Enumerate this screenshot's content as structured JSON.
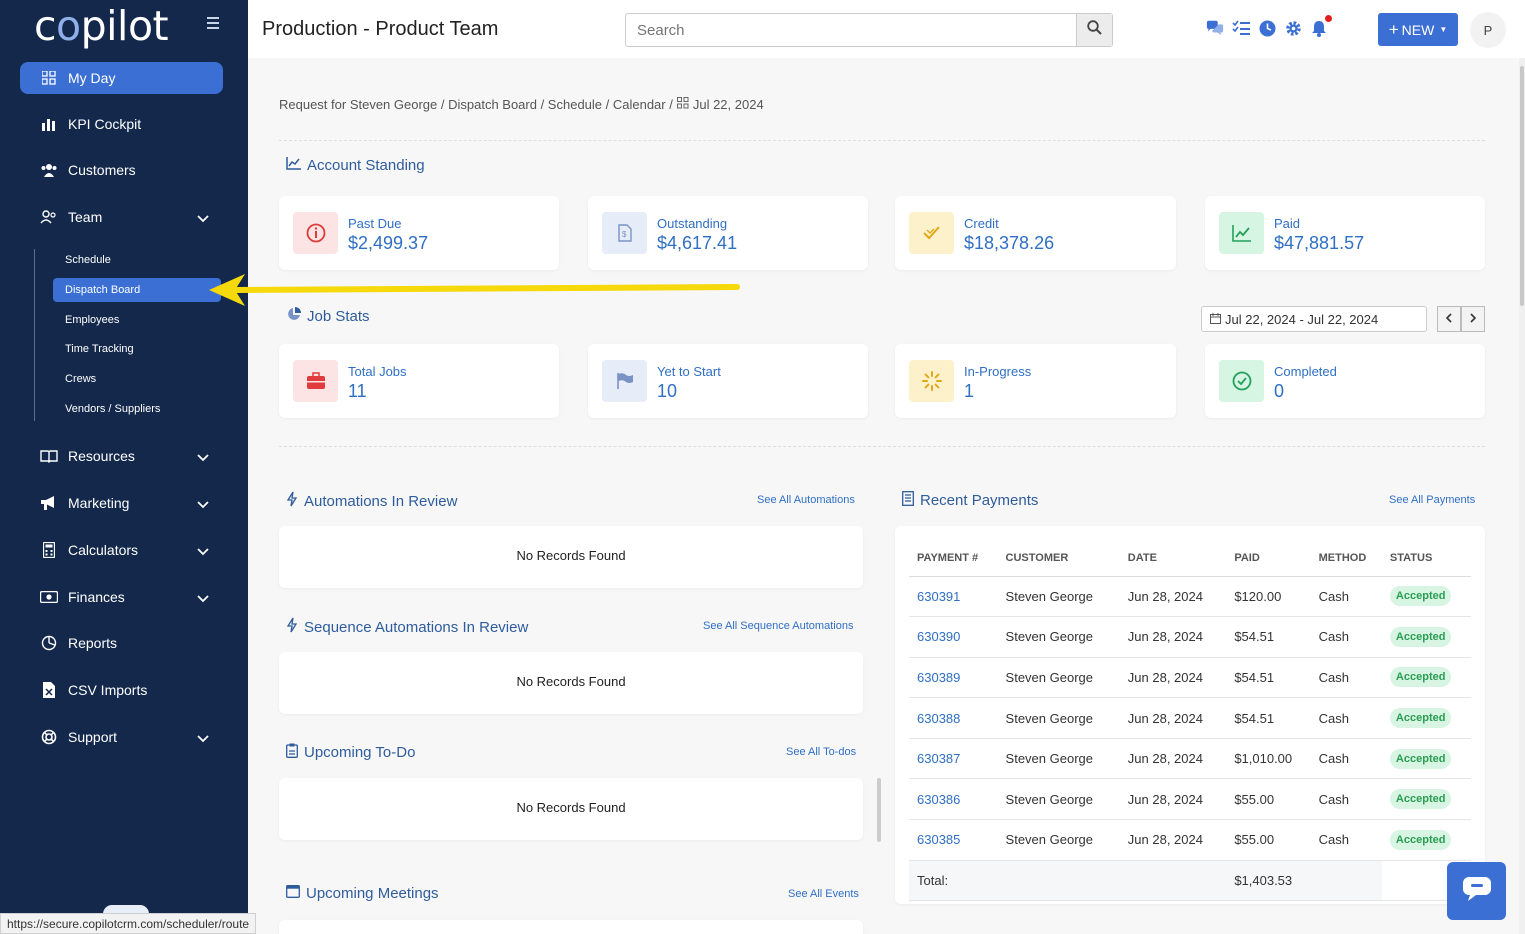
{
  "app": {
    "logo": "copilot",
    "page_title": "Production - Product Team",
    "status_url": "https://secure.copilotcrm.com/scheduler/route"
  },
  "header": {
    "search_placeholder": "Search",
    "new_button": "NEW",
    "avatar_initial": "P",
    "icons": [
      "chat-icon",
      "tasks-icon",
      "clock-icon",
      "gear-icon",
      "bell-icon"
    ]
  },
  "sidebar": {
    "items": [
      {
        "label": "My Day",
        "icon": "grid-icon"
      },
      {
        "label": "KPI Cockpit",
        "icon": "bar-chart-icon"
      },
      {
        "label": "Customers",
        "icon": "users-icon"
      },
      {
        "label": "Team",
        "icon": "team-icon"
      },
      {
        "label": "Resources",
        "icon": "book-icon"
      },
      {
        "label": "Marketing",
        "icon": "megaphone-icon"
      },
      {
        "label": "Calculators",
        "icon": "calculator-icon"
      },
      {
        "label": "Finances",
        "icon": "money-icon"
      },
      {
        "label": "Reports",
        "icon": "pie-chart-icon"
      },
      {
        "label": "CSV Imports",
        "icon": "file-icon"
      },
      {
        "label": "Support",
        "icon": "lifebuoy-icon"
      }
    ],
    "team_sub": [
      "Schedule",
      "Dispatch Board",
      "Employees",
      "Time Tracking",
      "Crews",
      "Vendors / Suppliers"
    ]
  },
  "breadcrumb": {
    "path": "Request for Steven George / Dispatch Board / Schedule / Calendar /",
    "date": "Jul 22, 2024"
  },
  "account_standing": {
    "title": "Account Standing",
    "cards": [
      {
        "label": "Past Due",
        "value": "$2,499.37"
      },
      {
        "label": "Outstanding",
        "value": "$4,617.41"
      },
      {
        "label": "Credit",
        "value": "$18,378.26"
      },
      {
        "label": "Paid",
        "value": "$47,881.57"
      }
    ]
  },
  "job_stats": {
    "title": "Job Stats",
    "date_range": "Jul 22, 2024 - Jul 22, 2024",
    "cards": [
      {
        "label": "Total Jobs",
        "value": "11"
      },
      {
        "label": "Yet to Start",
        "value": "10"
      },
      {
        "label": "In-Progress",
        "value": "1"
      },
      {
        "label": "Completed",
        "value": "0"
      }
    ]
  },
  "panels": {
    "automations": {
      "title": "Automations In Review",
      "link": "See All Automations",
      "empty": "No Records Found"
    },
    "sequence": {
      "title": "Sequence Automations In Review",
      "link": "See All Sequence Automations",
      "empty": "No Records Found"
    },
    "todo": {
      "title": "Upcoming To-Do",
      "link": "See All To-dos",
      "empty": "No Records Found"
    },
    "meetings": {
      "title": "Upcoming Meetings",
      "link": "See All Events"
    }
  },
  "payments": {
    "title": "Recent Payments",
    "link": "See All Payments",
    "columns": [
      "PAYMENT #",
      "CUSTOMER",
      "DATE",
      "PAID",
      "METHOD",
      "STATUS"
    ],
    "rows": [
      {
        "num": "630391",
        "customer": "Steven George",
        "date": "Jun 28, 2024",
        "paid": "$120.00",
        "method": "Cash",
        "status": "Accepted"
      },
      {
        "num": "630390",
        "customer": "Steven George",
        "date": "Jun 28, 2024",
        "paid": "$54.51",
        "method": "Cash",
        "status": "Accepted"
      },
      {
        "num": "630389",
        "customer": "Steven George",
        "date": "Jun 28, 2024",
        "paid": "$54.51",
        "method": "Cash",
        "status": "Accepted"
      },
      {
        "num": "630388",
        "customer": "Steven George",
        "date": "Jun 28, 2024",
        "paid": "$54.51",
        "method": "Cash",
        "status": "Accepted"
      },
      {
        "num": "630387",
        "customer": "Steven George",
        "date": "Jun 28, 2024",
        "paid": "$1,010.00",
        "method": "Cash",
        "status": "Accepted"
      },
      {
        "num": "630386",
        "customer": "Steven George",
        "date": "Jun 28, 2024",
        "paid": "$55.00",
        "method": "Cash",
        "status": "Accepted"
      },
      {
        "num": "630385",
        "customer": "Steven George",
        "date": "Jun 28, 2024",
        "paid": "$55.00",
        "method": "Cash",
        "status": "Accepted"
      }
    ],
    "total_label": "Total:",
    "total_value": "$1,403.53"
  },
  "colors": {
    "sidebar": "#13284b",
    "accent": "#3b6fd4",
    "link": "#2f6fc4",
    "arrow": "#f5d90a"
  }
}
